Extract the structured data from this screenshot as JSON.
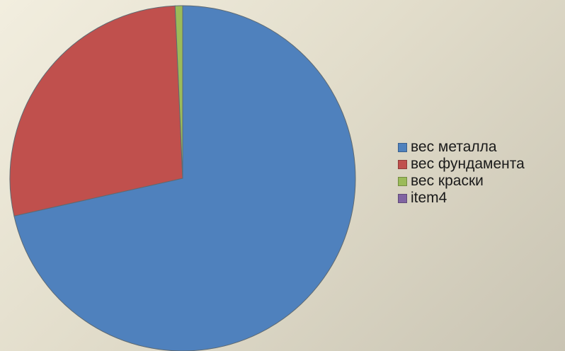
{
  "chart_data": {
    "type": "pie",
    "categories": [
      "вес металла",
      "вес фундамента",
      "вес краски",
      "item4"
    ],
    "values": [
      71.5,
      27.8,
      0.7,
      0.0
    ],
    "colors": [
      "#4f81bd",
      "#c0504d",
      "#9bbb59",
      "#8064a2"
    ],
    "title": "",
    "legend": {
      "position": "right",
      "items": [
        "вес металла",
        "вес фундамента",
        "вес краски",
        "item4"
      ]
    }
  }
}
